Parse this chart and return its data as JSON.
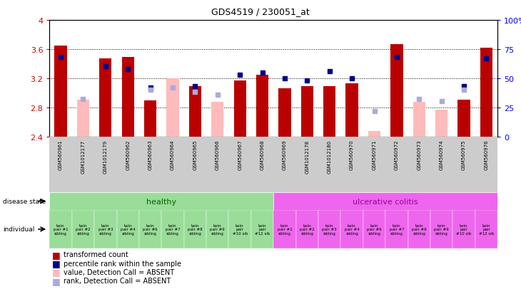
{
  "title": "GDS4519 / 230051_at",
  "samples": [
    "GSM560961",
    "GSM1012177",
    "GSM1012179",
    "GSM560962",
    "GSM560963",
    "GSM560964",
    "GSM560965",
    "GSM560966",
    "GSM560967",
    "GSM560968",
    "GSM560969",
    "GSM1012178",
    "GSM1012180",
    "GSM560970",
    "GSM560971",
    "GSM560972",
    "GSM560973",
    "GSM560974",
    "GSM560975",
    "GSM560976"
  ],
  "transformed_count": [
    3.65,
    null,
    3.47,
    3.49,
    2.89,
    null,
    3.09,
    null,
    3.17,
    3.25,
    3.06,
    3.09,
    3.09,
    3.13,
    null,
    3.67,
    null,
    null,
    2.9,
    3.62
  ],
  "transformed_count_absent": [
    null,
    2.9,
    null,
    null,
    null,
    3.2,
    null,
    2.87,
    null,
    null,
    null,
    null,
    null,
    null,
    2.47,
    null,
    2.87,
    2.77,
    null,
    null
  ],
  "percentile_rank": [
    68,
    null,
    60,
    58,
    42,
    null,
    43,
    null,
    53,
    55,
    50,
    48,
    56,
    50,
    null,
    68,
    null,
    null,
    43,
    67
  ],
  "percentile_rank_absent": [
    null,
    32,
    null,
    null,
    40,
    42,
    38,
    36,
    null,
    null,
    null,
    null,
    null,
    null,
    22,
    null,
    32,
    30,
    40,
    null
  ],
  "ylim_left": [
    2.4,
    4.0
  ],
  "ylim_right": [
    0,
    100
  ],
  "yticks_left": [
    2.4,
    2.8,
    3.2,
    3.6,
    4.0
  ],
  "ytick_labels_left": [
    "2.4",
    "2.8",
    "3.2",
    "3.6",
    "4"
  ],
  "yticks_right": [
    0,
    25,
    50,
    75,
    100
  ],
  "ytick_labels_right": [
    "0",
    "25",
    "50",
    "75",
    "100%"
  ],
  "bar_color_red": "#bb0000",
  "bar_color_pink": "#ffbbbb",
  "bar_color_blue": "#000088",
  "bar_color_lightblue": "#aaaadd",
  "healthy_color": "#99dd99",
  "uc_color": "#ee66ee",
  "disease_label_color": "#006600",
  "uc_label_color": "#990099",
  "individuals": [
    "twin\npair #1\nsibling",
    "twin\npair #2\nsibling",
    "twin\npair #3\nsibling",
    "twin\npair #4\nsibling",
    "twin\npair #6\nsibling",
    "twin\npair #7\nsibling",
    "twin\npair #8\nsibling",
    "twin\npair #9\nsibling",
    "twin\npair\n#10 sib",
    "twin\npair\n#12 sib",
    "twin\npair #1\nsibling",
    "twin\npair #2\nsibling",
    "twin\npair #3\nsibling",
    "twin\npair #4\nsibling",
    "twin\npair #6\nsibling",
    "twin\npair #7\nsibling",
    "twin\npair #8\nsibling",
    "twin\npair #9\nsibling",
    "twin\npair\n#10 sib",
    "twin\npair\n#12 sib"
  ]
}
